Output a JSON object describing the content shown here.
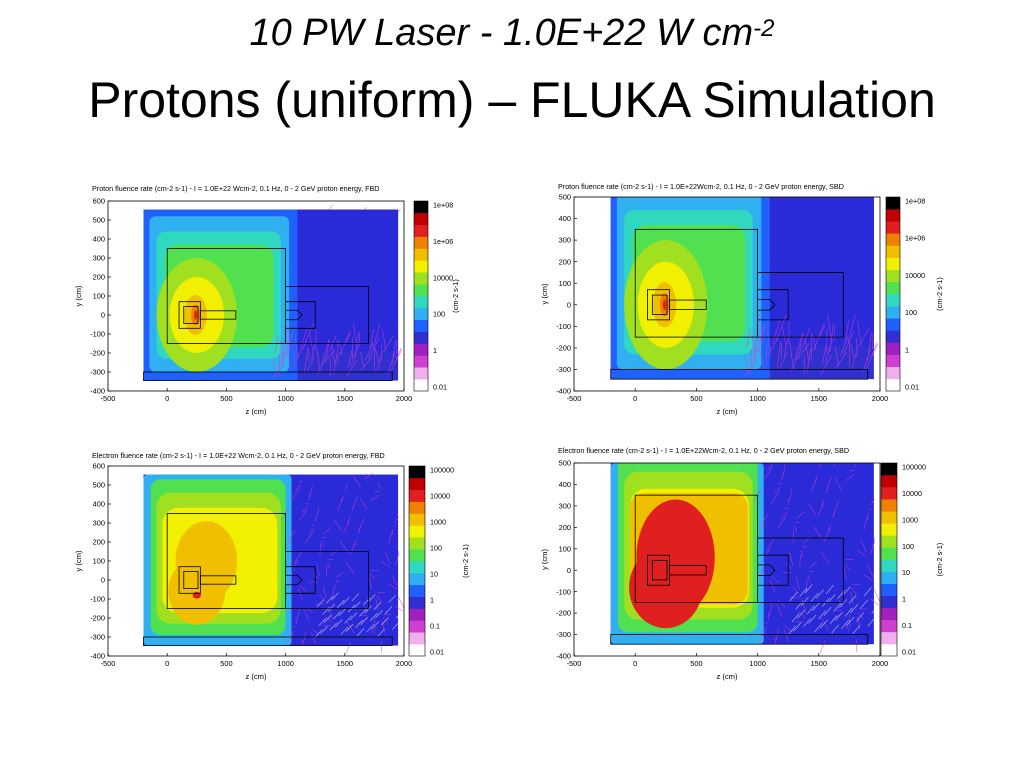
{
  "slide": {
    "title_line1_main": "10 PW Laser - 1.0E+22 W cm",
    "title_line1_sup": "-2",
    "title_line2": "Protons (uniform) – FLUKA Simulation"
  },
  "colors": {
    "scale": [
      "#ffffff",
      "#f0b0f0",
      "#d040d0",
      "#a020c0",
      "#3030d0",
      "#2060ff",
      "#30b0f0",
      "#30d8c0",
      "#50e050",
      "#a0e020",
      "#f0f000",
      "#f0c000",
      "#f08000",
      "#e02020",
      "#c00000",
      "#000000"
    ]
  },
  "chart_data": [
    {
      "type": "heatmap",
      "title": "Proton fluence rate (cm-2 s-1) -  I = 1.0E+22 Wcm-2, 0.1 Hz, 0 - 2 GeV proton energy, FBD",
      "xlabel": "z (cm)",
      "ylabel": "y (cm)",
      "colorbar_label": "(cm-2 s-1)",
      "xlim": [
        -500,
        2000
      ],
      "ylim": [
        -400,
        600
      ],
      "xticks": [
        "-500",
        "0",
        "500",
        "1000",
        "1500",
        "2000"
      ],
      "yticks": [
        "-400",
        "-300",
        "-200",
        "-100",
        "0",
        "100",
        "200",
        "300",
        "400",
        "500",
        "600"
      ],
      "colorbar_ticks": [
        "1e+08",
        "1e+06",
        "10000",
        "100",
        "1",
        "0.01"
      ],
      "grid": false,
      "colorbar": "right"
    },
    {
      "type": "heatmap",
      "title": "Proton fluence rate (cm-2 s-1) - I = 1.0E+22Wcm-2, 0.1 Hz, 0 - 2 GeV proton energy, SBD",
      "xlabel": "z (cm)",
      "ylabel": "y (cm)",
      "colorbar_label": "(cm-2 s-1)",
      "xlim": [
        -500,
        2000
      ],
      "ylim": [
        -400,
        500
      ],
      "xticks": [
        "-500",
        "0",
        "500",
        "1000",
        "1500",
        "2000"
      ],
      "yticks": [
        "-400",
        "-300",
        "-200",
        "-100",
        "0",
        "100",
        "200",
        "300",
        "400",
        "500"
      ],
      "colorbar_ticks": [
        "1e+08",
        "1e+06",
        "10000",
        "100",
        "1",
        "0.01"
      ],
      "grid": false,
      "colorbar": "right"
    },
    {
      "type": "heatmap",
      "title": "Electron fluence rate (cm-2 s-1) -  I = 1.0E+22 Wcm-2, 0.1 Hz, 0 - 2 GeV proton energy, FBD",
      "xlabel": "z (cm)",
      "ylabel": "y (cm)",
      "colorbar_label": "(cm-2 s-1)",
      "xlim": [
        -500,
        2000
      ],
      "ylim": [
        -400,
        600
      ],
      "xticks": [
        "-500",
        "0",
        "500",
        "1000",
        "1500",
        "2000"
      ],
      "yticks": [
        "-400",
        "-300",
        "-200",
        "-100",
        "0",
        "100",
        "200",
        "300",
        "400",
        "500",
        "600"
      ],
      "colorbar_ticks": [
        "100000",
        "10000",
        "1000",
        "100",
        "10",
        "1",
        "0.1",
        "0.01"
      ],
      "grid": false,
      "colorbar": "right"
    },
    {
      "type": "heatmap",
      "title": "Electron fluence rate (cm-2 s-1) - I = 1.0E+22Wcm-2, 0.1 Hz, 0 - 2 GeV proton energy, SBD",
      "xlabel": "z (cm)",
      "ylabel": "y (cm)",
      "colorbar_label": "(cm-2 s-1)",
      "xlim": [
        -500,
        2000
      ],
      "ylim": [
        -400,
        500
      ],
      "xticks": [
        "-500",
        "0",
        "500",
        "1000",
        "1500",
        "2000"
      ],
      "yticks": [
        "-400",
        "-300",
        "-200",
        "-100",
        "0",
        "100",
        "200",
        "300",
        "400",
        "500"
      ],
      "colorbar_ticks": [
        "100000",
        "10000",
        "1000",
        "100",
        "10",
        "1",
        "0.1",
        "0.01"
      ],
      "grid": false,
      "colorbar": "right"
    }
  ]
}
